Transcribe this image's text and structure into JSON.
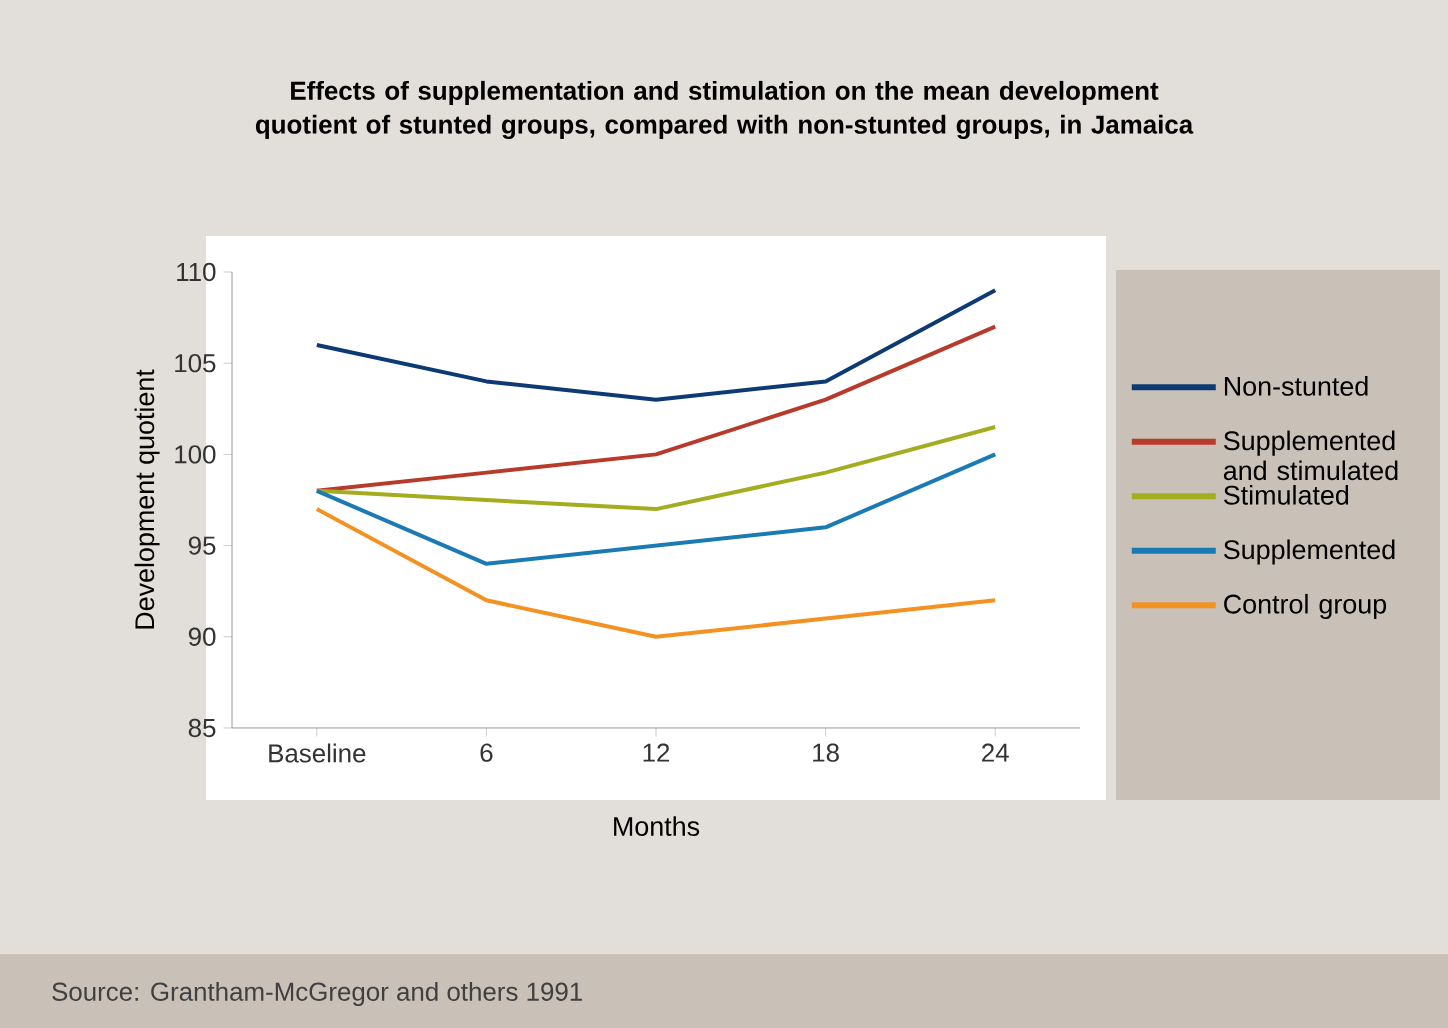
{
  "chart_data": {
    "type": "line",
    "title": "Effects of supplementation and stimulation on the mean development quotient of stunted groups, compared with non-stunted groups, in Jamaica",
    "xlabel": "Months",
    "ylabel": "Development quotient",
    "categories": [
      "Baseline",
      "6",
      "12",
      "18",
      "24"
    ],
    "series": [
      {
        "name": "Non-stunted",
        "color": "#0d3a73",
        "values": [
          106,
          104,
          103,
          104,
          109
        ]
      },
      {
        "name": "Supplemented and stimulated",
        "color": "#b83a2b",
        "values": [
          98,
          99,
          100,
          103,
          107
        ]
      },
      {
        "name": "Stimulated",
        "color": "#a3ad1f",
        "values": [
          98,
          97.5,
          97,
          99,
          101.5
        ]
      },
      {
        "name": "Supplemented",
        "color": "#1a7ab4",
        "values": [
          98,
          94,
          95,
          96,
          100
        ]
      },
      {
        "name": "Control group",
        "color": "#f39223",
        "values": [
          97,
          92,
          90,
          91,
          92
        ]
      }
    ],
    "ylim": [
      85,
      110
    ],
    "yticks": [
      85,
      90,
      95,
      100,
      105,
      110
    ],
    "legend": "right",
    "marker": "none",
    "line_style": "solid",
    "annotations": [
      "Source: Grantham-McGregor and others 1991"
    ]
  }
}
